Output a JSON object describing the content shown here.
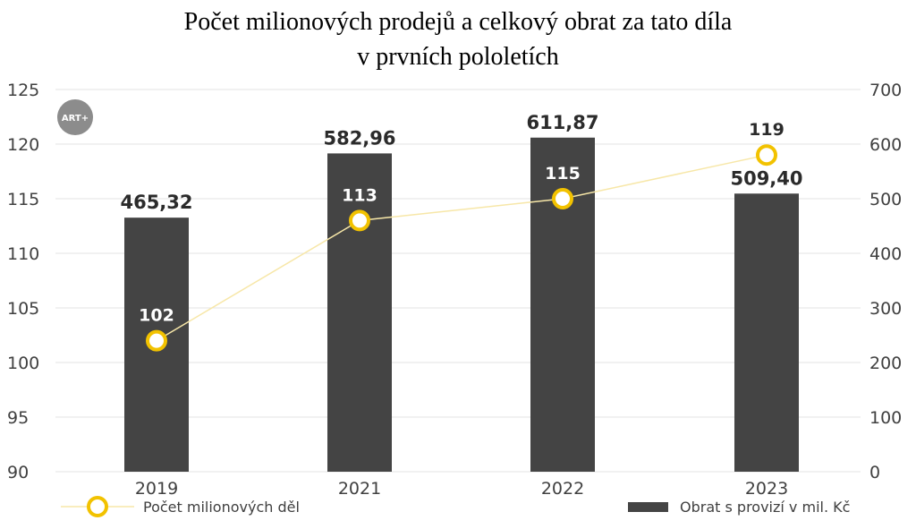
{
  "chart_data": {
    "type": "bar",
    "title": [
      "Počet milionových prodejů a celkový obrat za tato díla",
      "v prvních pololetích"
    ],
    "logo": "ART+",
    "categories": [
      "2019",
      "2021",
      "2022",
      "2023"
    ],
    "bar_series": {
      "name": "Obrat s provizí v mil. Kč",
      "values": [
        465.32,
        582.96,
        611.87,
        509.4
      ],
      "labels": [
        "465,32",
        "582,96",
        "611,87",
        "509,40"
      ],
      "color": "#444444",
      "axis": "right",
      "ylim": [
        0,
        700
      ],
      "ticks": [
        "0",
        "100",
        "200",
        "300",
        "400",
        "500",
        "600",
        "700"
      ]
    },
    "line_series": {
      "name": "Počet milionových děl",
      "values": [
        102,
        113,
        115,
        119
      ],
      "labels": [
        "102",
        "113",
        "115",
        "119"
      ],
      "color": "#f2c200",
      "line_color": "#f7e7a8",
      "axis": "left",
      "ylim": [
        90,
        125
      ],
      "ticks": [
        "90",
        "95",
        "100",
        "105",
        "110",
        "115",
        "120",
        "125"
      ]
    },
    "grid": true,
    "legend": "bottom"
  }
}
